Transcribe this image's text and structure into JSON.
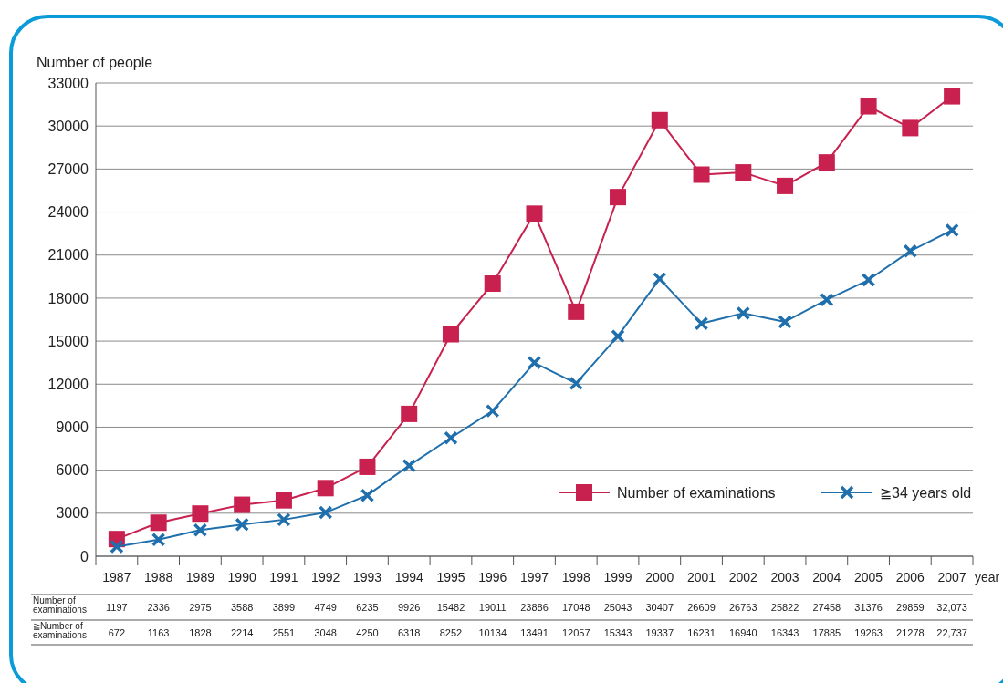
{
  "chart_data": {
    "type": "line",
    "ylabel": "Number of people",
    "xlabel": "year",
    "categories": [
      "1987",
      "1988",
      "1989",
      "1990",
      "1991",
      "1992",
      "1993",
      "1994",
      "1995",
      "1996",
      "1997",
      "1998",
      "1999",
      "2000",
      "2001",
      "2002",
      "2003",
      "2004",
      "2005",
      "2006",
      "2007"
    ],
    "series": [
      {
        "name": "Number of examinations",
        "color": "#c8204f",
        "marker": "square",
        "values": [
          1197,
          2336,
          2975,
          3588,
          3899,
          4749,
          6235,
          9926,
          15482,
          19011,
          23886,
          17048,
          25043,
          30407,
          26609,
          26763,
          25822,
          27458,
          31376,
          29859,
          32073
        ],
        "value_labels": [
          "1197",
          "2336",
          "2975",
          "3588",
          "3899",
          "4749",
          "6235",
          "9926",
          "15482",
          "19011",
          "23886",
          "17048",
          "25043",
          "30407",
          "26609",
          "26763",
          "25822",
          "27458",
          "31376",
          "29859",
          "32,073"
        ]
      },
      {
        "name": "≧34 years old",
        "color": "#1f6fad",
        "marker": "cross",
        "values": [
          672,
          1163,
          1828,
          2214,
          2551,
          3048,
          4250,
          6318,
          8252,
          10134,
          13491,
          12057,
          15343,
          19337,
          16231,
          16940,
          16343,
          17885,
          19263,
          21278,
          22737
        ],
        "value_labels": [
          "672",
          "1163",
          "1828",
          "2214",
          "2551",
          "3048",
          "4250",
          "6318",
          "8252",
          "10134",
          "13491",
          "12057",
          "15343",
          "19337",
          "16231",
          "16940",
          "16343",
          "17885",
          "19263",
          "21278",
          "22,737"
        ]
      }
    ],
    "annotations": [
      "Number of examinations",
      "≧Number of examinations"
    ],
    "ylim": [
      0,
      33000
    ],
    "yticks": [
      0,
      3000,
      6000,
      9000,
      12000,
      15000,
      18000,
      21000,
      24000,
      27000,
      30000,
      33000
    ],
    "grid": "y",
    "legend": "bottom right"
  }
}
